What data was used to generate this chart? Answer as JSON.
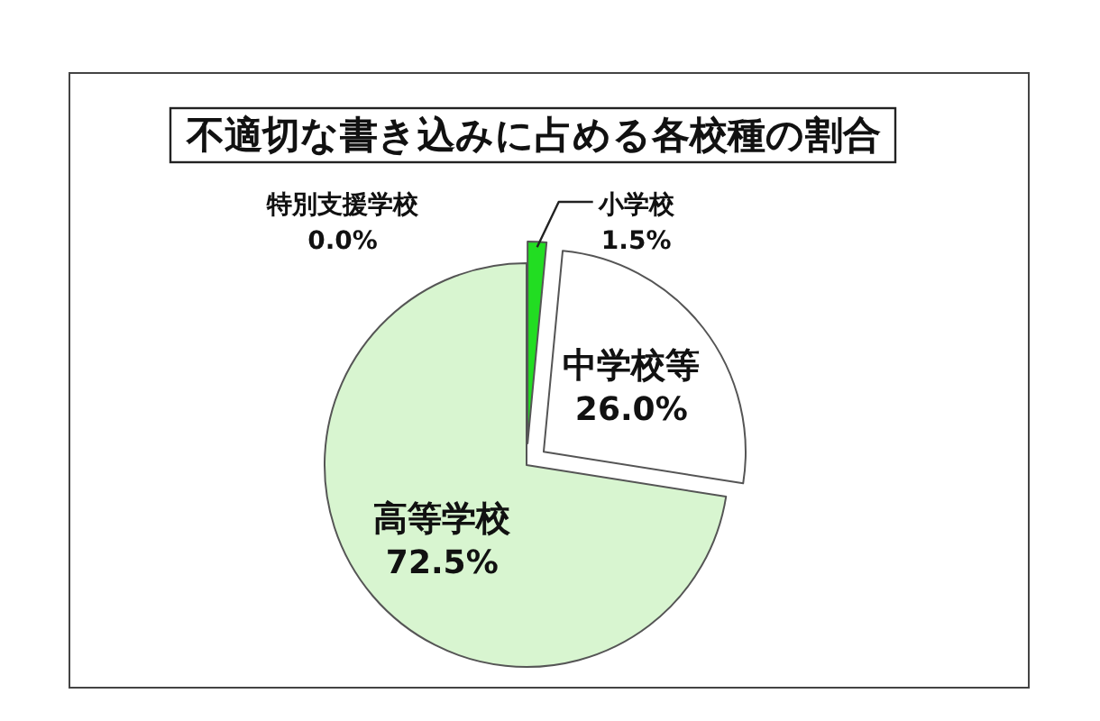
{
  "chart_data": {
    "type": "pie",
    "title": "不適切な書き込みに占める各校種の割合",
    "categories": [
      "特別支援学校",
      "小学校",
      "中学校等",
      "高等学校"
    ],
    "values": [
      0.0,
      1.5,
      26.0,
      72.5
    ],
    "colors": [
      "#9999ff",
      "#22dd22",
      "#ffffff",
      "#d8f5d0"
    ],
    "value_labels": [
      "0.0%",
      "1.5%",
      "26.0%",
      "72.5%"
    ]
  }
}
